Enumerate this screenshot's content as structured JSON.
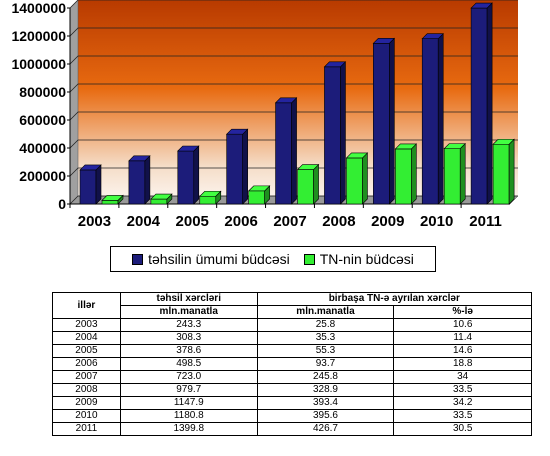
{
  "chart_data": {
    "type": "bar",
    "categories": [
      "2003",
      "2004",
      "2005",
      "2006",
      "2007",
      "2008",
      "2009",
      "2010",
      "2011"
    ],
    "series": [
      {
        "name": "təhsilin ümumi büdcəsi",
        "color": "#1c1c7a",
        "values": [
          243300,
          308300,
          378600,
          498500,
          723000,
          979700,
          1147900,
          1180800,
          1399800
        ]
      },
      {
        "name": "TN-nin büdcəsi",
        "color": "#33ee33",
        "values": [
          25800,
          35300,
          55300,
          93700,
          245800,
          328900,
          393400,
          395600,
          426700
        ]
      }
    ],
    "yticks": [
      "0",
      "200000",
      "400000",
      "600000",
      "800000",
      "1000000",
      "1200000",
      "1400000"
    ],
    "ylim": [
      0,
      1400000
    ],
    "grid": true,
    "legend": "bottom"
  },
  "table": {
    "header": {
      "col1": "illər",
      "col2": "təhsil xərcləri",
      "col34": "birbaşa TN-ə ayrılan xərclər",
      "sub2": "mln.manatla",
      "sub3": "mln.manatla",
      "sub4": "%-lə"
    },
    "rows": [
      {
        "year": "2003",
        "edu": "243.3",
        "tn": "25.8",
        "pct": "10.6"
      },
      {
        "year": "2004",
        "edu": "308.3",
        "tn": "35.3",
        "pct": "11.4"
      },
      {
        "year": "2005",
        "edu": "378.6",
        "tn": "55.3",
        "pct": "14.6"
      },
      {
        "year": "2006",
        "edu": "498.5",
        "tn": "93.7",
        "pct": "18.8"
      },
      {
        "year": "2007",
        "edu": "723.0",
        "tn": "245.8",
        "pct": "34"
      },
      {
        "year": "2008",
        "edu": "979.7",
        "tn": "328.9",
        "pct": "33.5"
      },
      {
        "year": "2009",
        "edu": "1147.9",
        "tn": "393.4",
        "pct": "34.2"
      },
      {
        "year": "2010",
        "edu": "1180.8",
        "tn": "395.6",
        "pct": "33.5"
      },
      {
        "year": "2011",
        "edu": "1399.8",
        "tn": "426.7",
        "pct": "30.5"
      }
    ]
  }
}
